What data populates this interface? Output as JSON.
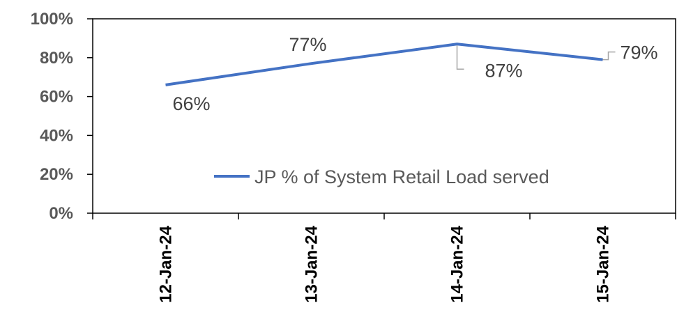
{
  "chart_data": {
    "type": "line",
    "categories": [
      "12-Jan-24",
      "13-Jan-24",
      "14-Jan-24",
      "15-Jan-24"
    ],
    "series": [
      {
        "name": "JP % of System Retail Load served",
        "values": [
          66,
          77,
          87,
          79
        ],
        "data_labels": [
          "66%",
          "77%",
          "87%",
          "79%"
        ],
        "color": "#4472C4"
      }
    ],
    "yticks": [
      "0%",
      "20%",
      "40%",
      "60%",
      "80%",
      "100%"
    ],
    "ylim": [
      0,
      100
    ],
    "title": "",
    "xlabel": "",
    "ylabel": "",
    "grid": false,
    "legend": "inside-lower-right",
    "leader_line_color": "#A6A6A6"
  }
}
